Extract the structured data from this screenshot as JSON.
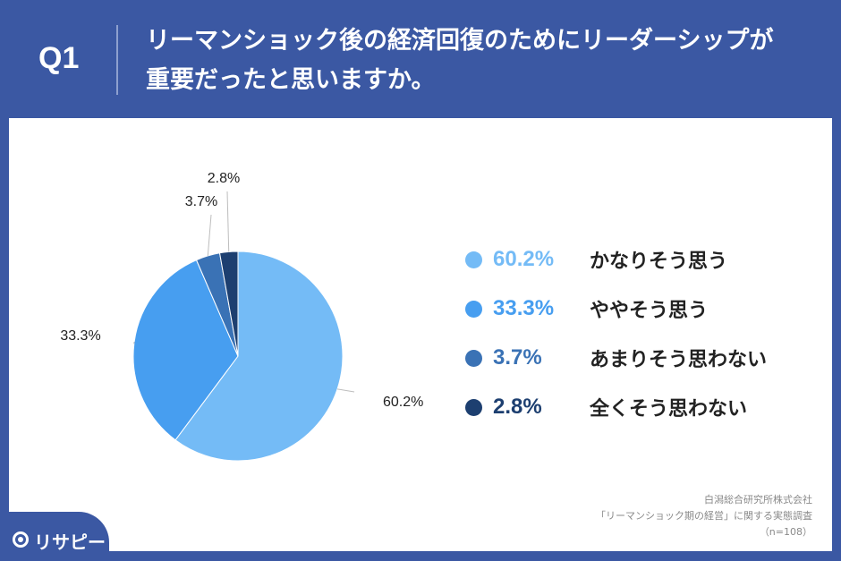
{
  "header": {
    "question_number": "Q1",
    "question_line1": "リーマンショック後の経済回復のためにリーダーシップが",
    "question_line2": "重要だったと思いますか。"
  },
  "chart_data": {
    "type": "pie",
    "slices": [
      {
        "label": "かなりそう思う",
        "value": 60.2,
        "value_label": "60.2%",
        "color": "#74bbf6"
      },
      {
        "label": "ややそう思う",
        "value": 33.3,
        "value_label": "33.3%",
        "color": "#479ef0"
      },
      {
        "label": "あまりそう思わない",
        "value": 3.7,
        "value_label": "3.7%",
        "color": "#3a72b5"
      },
      {
        "label": "全くそう思わない",
        "value": 2.8,
        "value_label": "2.8%",
        "color": "#1d3f70"
      }
    ],
    "start_angle_deg": 0,
    "direction": "clockwise",
    "legend_position": "right"
  },
  "source": {
    "line1": "白潟総合研究所株式会社",
    "line2": "「リーマンショック期の経営」に関する実態調査",
    "line3": "（n=108）"
  },
  "logo": {
    "text": "リサピー",
    "icon": "speech-pin-icon"
  }
}
